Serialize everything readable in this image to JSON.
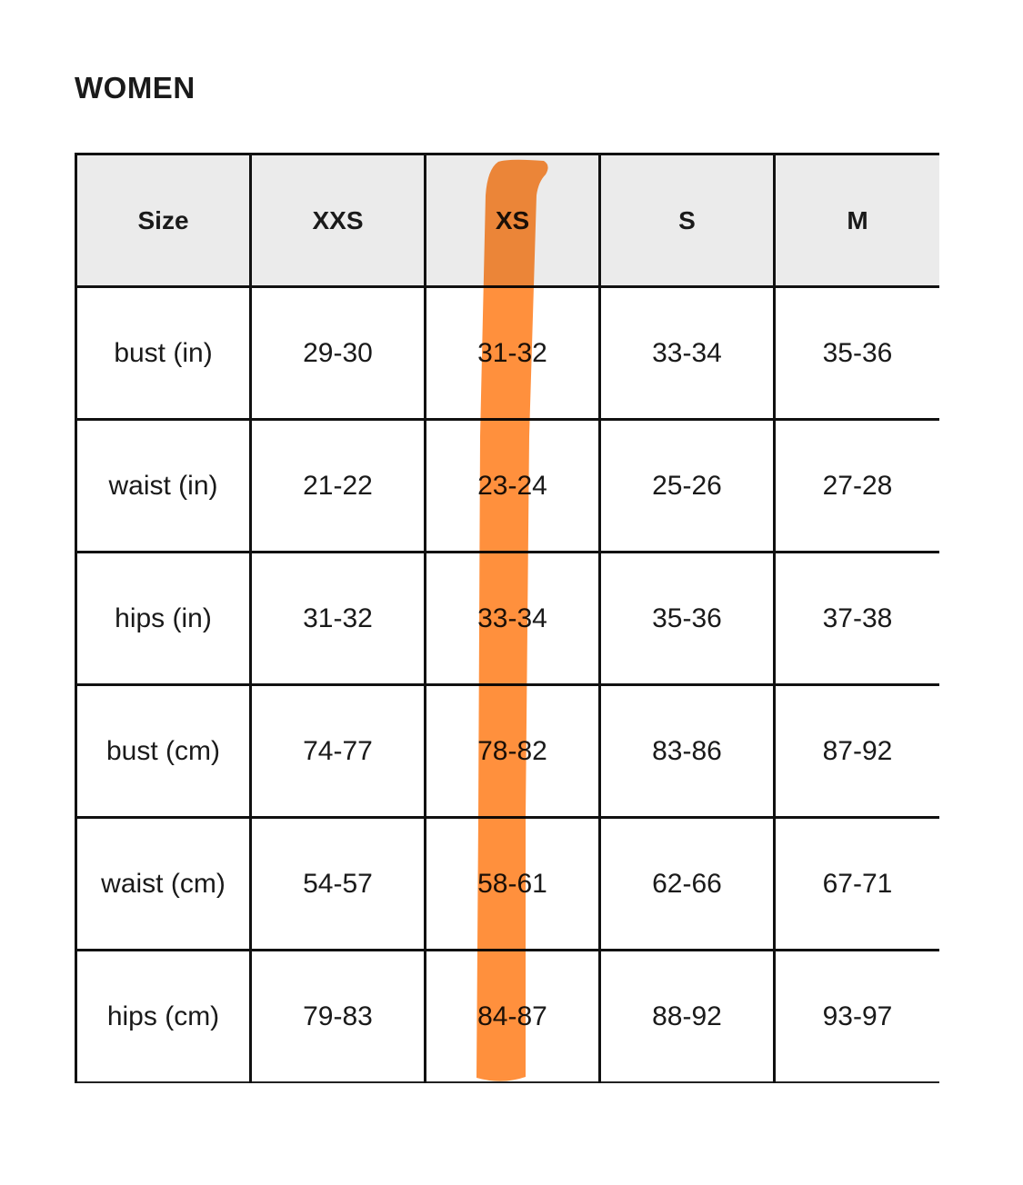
{
  "title": "WOMEN",
  "table": {
    "headers": [
      "Size",
      "XXS",
      "XS",
      "S",
      "M"
    ],
    "rows": [
      [
        "bust (in)",
        "29-30",
        "31-32",
        "33-34",
        "35-36"
      ],
      [
        "waist (in)",
        "21-22",
        "23-24",
        "25-26",
        "27-28"
      ],
      [
        "hips (in)",
        "31-32",
        "33-34",
        "35-36",
        "37-38"
      ],
      [
        "bust (cm)",
        "74-77",
        "78-82",
        "83-86",
        "87-92"
      ],
      [
        "waist (cm)",
        "54-57",
        "58-61",
        "62-66",
        "67-71"
      ],
      [
        "hips (cm)",
        "79-83",
        "84-87",
        "88-92",
        "93-97"
      ]
    ]
  },
  "highlight": {
    "column": "XS",
    "color": "#ff8a33"
  }
}
